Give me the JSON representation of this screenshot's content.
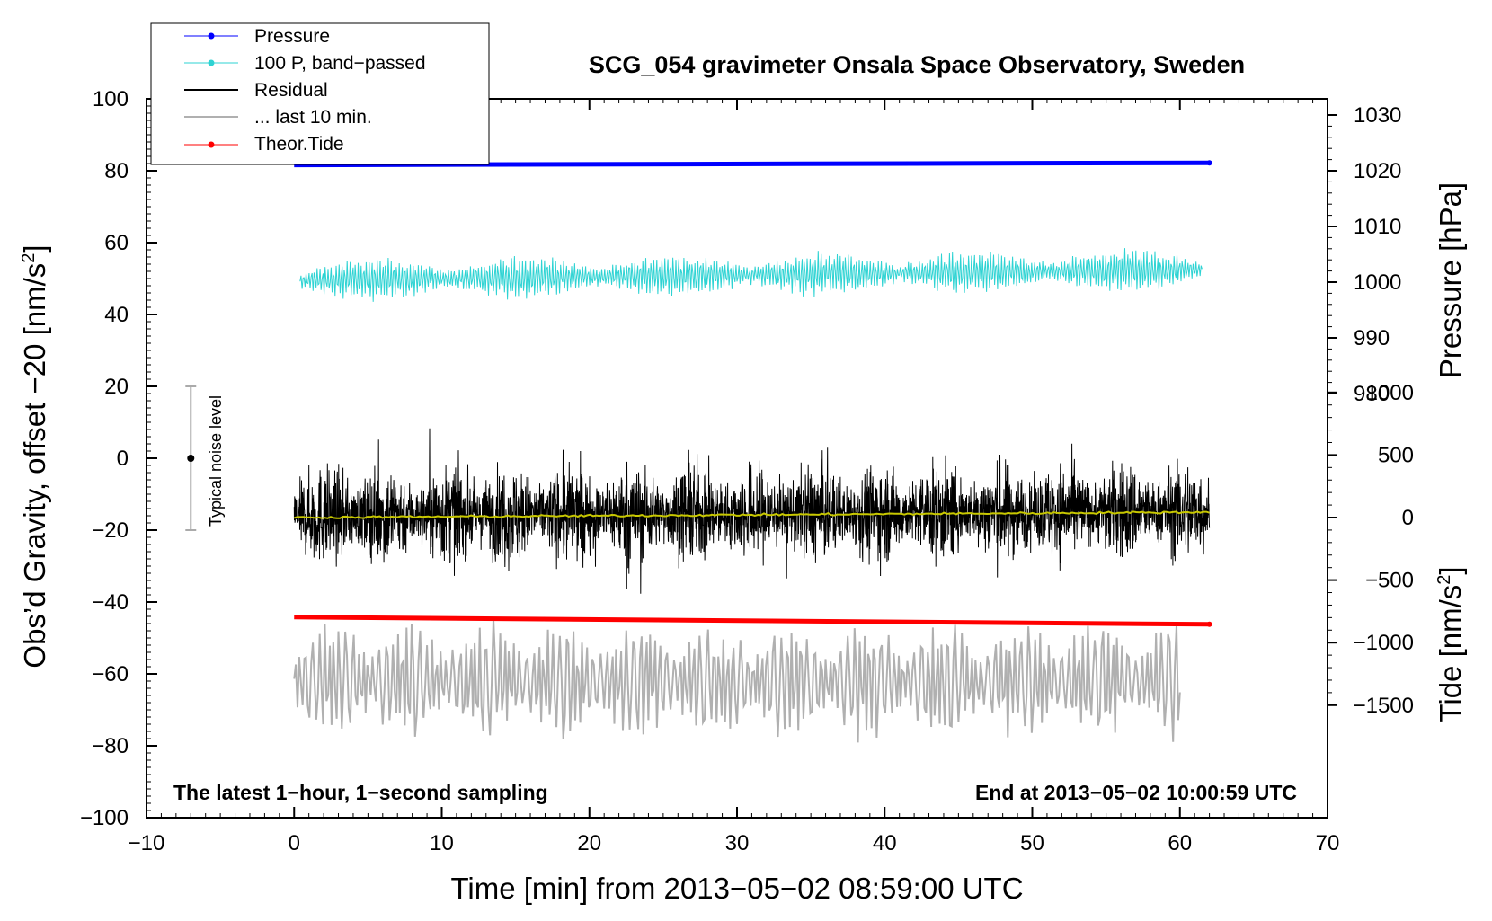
{
  "chart_data": {
    "type": "line",
    "title": "SCG_054 gravimeter Onsala Space Observatory, Sweden",
    "xlabel": "Time [min] from 2013−05−02 08:59:00 UTC",
    "ylabel_left_main": "Obs’d Gravity, offset −20 [nm/s",
    "ylabel_left_sup": "2",
    "ylabel_left_end": "]",
    "ylabel_right_top": "Pressure [hPa]",
    "ylabel_right_bottom_main": "Tide [nm/s",
    "ylabel_right_bottom_sup": "2",
    "ylabel_right_bottom_end": "]",
    "xlim": [
      -10,
      70
    ],
    "ylim_left": [
      -100,
      100
    ],
    "x_ticks": [
      "−10",
      "0",
      "10",
      "20",
      "30",
      "40",
      "50",
      "60",
      "70"
    ],
    "y_ticks_left": [
      "100",
      "80",
      "60",
      "40",
      "20",
      "0",
      "−20",
      "−40",
      "−60",
      "−80",
      "−100"
    ],
    "y_ticks_pressure": [
      "1030",
      "1020",
      "1010",
      "1000",
      "990",
      "980"
    ],
    "y_ticks_tide": [
      "1000",
      "500",
      "0",
      "−500",
      "−1000",
      "−1500"
    ],
    "pressure_axis_range_hPa": [
      980,
      1030
    ],
    "tide_axis_range_nm_s2": [
      -1500,
      1000
    ],
    "legend_position": "top-left",
    "grid": false,
    "annotation_left": "The latest 1−hour, 1−second sampling",
    "annotation_right": "End at 2013−05−02 10:00:59 UTC",
    "noise_bar": {
      "label": "Typical noise level",
      "x": -7,
      "center": 0,
      "low": -20,
      "high": 20
    },
    "series": [
      {
        "name": "Pressure",
        "color": "#0000ff",
        "marker": true,
        "x_range": [
          0,
          62
        ],
        "y_start": 81.6,
        "y_end": 82.2
      },
      {
        "name": "100 P, band−passed",
        "color": "#2ed3d3",
        "marker": true,
        "x_range": [
          0.4,
          61.5
        ],
        "y_center": 49.5,
        "amplitude": 4
      },
      {
        "name": "Residual",
        "color": "#000000",
        "marker": false,
        "x_range": [
          0,
          62
        ],
        "y_center": -16,
        "amplitude": 12
      },
      {
        "name": "... last 10 min.",
        "color": "#b0b0b0",
        "marker": false,
        "x_range": [
          0,
          60
        ],
        "y_center": -62,
        "amplitude": 10
      },
      {
        "name": "Theor.Tide",
        "color": "#ff0000",
        "marker": true,
        "x_range": [
          0,
          62
        ],
        "y_start": -44.2,
        "y_end": -46.2
      }
    ],
    "smoothed_residual": {
      "color": "#c8c800",
      "y_start": -16.5,
      "y_end": -15
    }
  }
}
